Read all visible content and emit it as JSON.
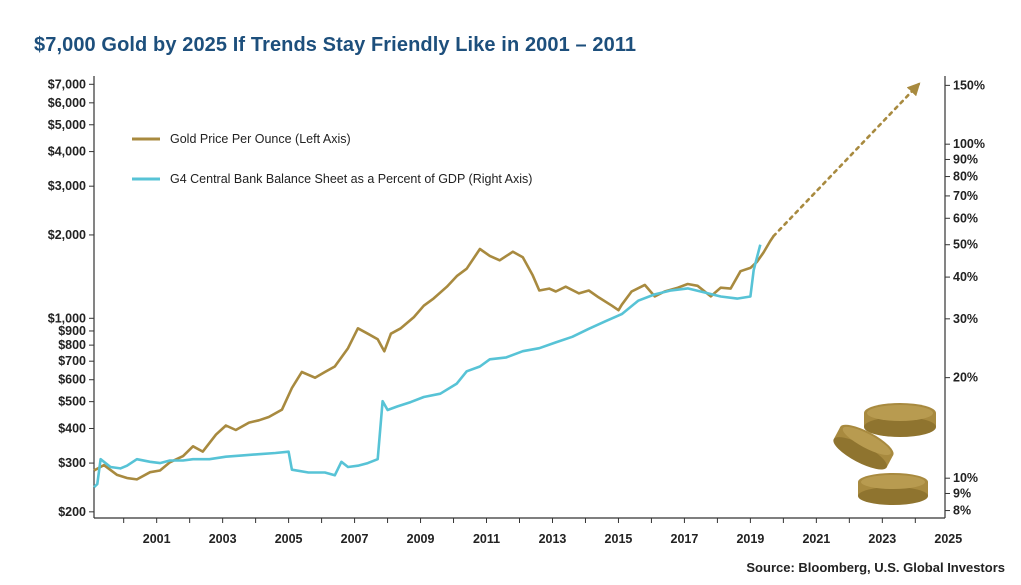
{
  "header": {
    "title": "$7,000 Gold by 2025 If Trends Stay Friendly Like in 2001 – 2011"
  },
  "footer": {
    "source": "Source: Bloomberg, U.S. Global Investors"
  },
  "colors": {
    "gold": "#a88a3f",
    "blue": "#57c3d6",
    "title": "#1d4f7c",
    "axis": "#333333"
  },
  "chart_data": {
    "type": "line",
    "title": "$7,000 Gold by 2025 If Trends Stay Friendly Like in 2001 – 2011",
    "x_range": [
      2000.0,
      2025.8
    ],
    "x_ticks": [
      "2001",
      "2003",
      "2005",
      "2007",
      "2009",
      "2011",
      "2013",
      "2015",
      "2017",
      "2019",
      "2021",
      "2023",
      "2025"
    ],
    "left_axis": {
      "scale": "log",
      "range": [
        190,
        7500
      ],
      "ticks": [
        {
          "value": 7000,
          "label": "$7,000"
        },
        {
          "value": 6000,
          "label": "$6,000"
        },
        {
          "value": 5000,
          "label": "$5,000"
        },
        {
          "value": 4000,
          "label": "$4,000"
        },
        {
          "value": 3000,
          "label": "$3,000"
        },
        {
          "value": 2000,
          "label": "$2,000"
        },
        {
          "value": 1000,
          "label": "$1,000"
        },
        {
          "value": 900,
          "label": "$900"
        },
        {
          "value": 800,
          "label": "$800"
        },
        {
          "value": 700,
          "label": "$700"
        },
        {
          "value": 600,
          "label": "$600"
        },
        {
          "value": 500,
          "label": "$500"
        },
        {
          "value": 400,
          "label": "$400"
        },
        {
          "value": 300,
          "label": "$300"
        },
        {
          "value": 200,
          "label": "$200"
        }
      ]
    },
    "right_axis": {
      "scale": "log",
      "range": [
        7.6,
        160
      ],
      "ticks": [
        {
          "value": 150,
          "label": "150%"
        },
        {
          "value": 100,
          "label": "100%"
        },
        {
          "value": 90,
          "label": "90%"
        },
        {
          "value": 80,
          "label": "80%"
        },
        {
          "value": 70,
          "label": "70%"
        },
        {
          "value": 60,
          "label": "60%"
        },
        {
          "value": 50,
          "label": "50%"
        },
        {
          "value": 40,
          "label": "40%"
        },
        {
          "value": 30,
          "label": "30%"
        },
        {
          "value": 20,
          "label": "20%"
        },
        {
          "value": 10,
          "label": "10%"
        },
        {
          "value": 9,
          "label": "9%"
        },
        {
          "value": 8,
          "label": "8%"
        }
      ]
    },
    "legend_placement": "top-left",
    "grid": false,
    "series": [
      {
        "name": "Gold Price Per Ounce (Left Axis)",
        "axis": "left",
        "color": "#a88a3f",
        "points": [
          [
            2000.0,
            282
          ],
          [
            2000.3,
            295
          ],
          [
            2000.7,
            272
          ],
          [
            2001.0,
            265
          ],
          [
            2001.3,
            262
          ],
          [
            2001.7,
            278
          ],
          [
            2002.0,
            282
          ],
          [
            2002.3,
            302
          ],
          [
            2002.7,
            318
          ],
          [
            2003.0,
            345
          ],
          [
            2003.3,
            330
          ],
          [
            2003.7,
            380
          ],
          [
            2004.0,
            410
          ],
          [
            2004.3,
            395
          ],
          [
            2004.7,
            420
          ],
          [
            2005.0,
            428
          ],
          [
            2005.3,
            440
          ],
          [
            2005.7,
            468
          ],
          [
            2006.0,
            560
          ],
          [
            2006.3,
            640
          ],
          [
            2006.7,
            610
          ],
          [
            2007.0,
            640
          ],
          [
            2007.3,
            670
          ],
          [
            2007.7,
            780
          ],
          [
            2008.0,
            920
          ],
          [
            2008.3,
            880
          ],
          [
            2008.6,
            840
          ],
          [
            2008.8,
            760
          ],
          [
            2009.0,
            880
          ],
          [
            2009.3,
            920
          ],
          [
            2009.7,
            1010
          ],
          [
            2010.0,
            1110
          ],
          [
            2010.3,
            1180
          ],
          [
            2010.7,
            1300
          ],
          [
            2011.0,
            1420
          ],
          [
            2011.3,
            1510
          ],
          [
            2011.7,
            1780
          ],
          [
            2012.0,
            1680
          ],
          [
            2012.3,
            1620
          ],
          [
            2012.7,
            1740
          ],
          [
            2013.0,
            1660
          ],
          [
            2013.3,
            1430
          ],
          [
            2013.5,
            1260
          ],
          [
            2013.8,
            1280
          ],
          [
            2014.0,
            1250
          ],
          [
            2014.3,
            1300
          ],
          [
            2014.7,
            1230
          ],
          [
            2015.0,
            1260
          ],
          [
            2015.3,
            1190
          ],
          [
            2015.7,
            1110
          ],
          [
            2015.9,
            1070
          ],
          [
            2016.0,
            1120
          ],
          [
            2016.3,
            1250
          ],
          [
            2016.7,
            1320
          ],
          [
            2017.0,
            1200
          ],
          [
            2017.3,
            1250
          ],
          [
            2017.7,
            1290
          ],
          [
            2018.0,
            1330
          ],
          [
            2018.3,
            1310
          ],
          [
            2018.7,
            1200
          ],
          [
            2019.0,
            1290
          ],
          [
            2019.3,
            1280
          ],
          [
            2019.6,
            1480
          ],
          [
            2019.9,
            1520
          ],
          [
            2020.1,
            1600
          ],
          [
            2020.3,
            1730
          ],
          [
            2020.5,
            1900
          ],
          [
            2020.6,
            1980
          ]
        ]
      },
      {
        "name": "G4 Central Bank Balance Sheet as a Percent of GDP (Right Axis)",
        "axis": "right",
        "color": "#57c3d6",
        "points": [
          [
            2000.0,
            9.4
          ],
          [
            2000.1,
            9.6
          ],
          [
            2000.2,
            11.4
          ],
          [
            2000.5,
            10.8
          ],
          [
            2000.8,
            10.7
          ],
          [
            2001.0,
            10.9
          ],
          [
            2001.3,
            11.4
          ],
          [
            2001.7,
            11.2
          ],
          [
            2002.0,
            11.1
          ],
          [
            2002.3,
            11.3
          ],
          [
            2002.7,
            11.3
          ],
          [
            2003.0,
            11.4
          ],
          [
            2003.5,
            11.4
          ],
          [
            2004.0,
            11.6
          ],
          [
            2004.5,
            11.7
          ],
          [
            2005.0,
            11.8
          ],
          [
            2005.5,
            11.9
          ],
          [
            2005.9,
            12.0
          ],
          [
            2006.0,
            10.6
          ],
          [
            2006.5,
            10.4
          ],
          [
            2007.0,
            10.4
          ],
          [
            2007.3,
            10.2
          ],
          [
            2007.5,
            11.2
          ],
          [
            2007.7,
            10.8
          ],
          [
            2008.0,
            10.9
          ],
          [
            2008.3,
            11.1
          ],
          [
            2008.6,
            11.4
          ],
          [
            2008.75,
            17.0
          ],
          [
            2008.9,
            16.0
          ],
          [
            2009.2,
            16.4
          ],
          [
            2009.6,
            16.9
          ],
          [
            2010.0,
            17.5
          ],
          [
            2010.5,
            17.9
          ],
          [
            2011.0,
            19.2
          ],
          [
            2011.3,
            20.9
          ],
          [
            2011.7,
            21.6
          ],
          [
            2012.0,
            22.7
          ],
          [
            2012.5,
            23.0
          ],
          [
            2013.0,
            24.0
          ],
          [
            2013.5,
            24.5
          ],
          [
            2014.0,
            25.5
          ],
          [
            2014.5,
            26.5
          ],
          [
            2015.0,
            28.0
          ],
          [
            2015.5,
            29.5
          ],
          [
            2016.0,
            31.0
          ],
          [
            2016.5,
            34.0
          ],
          [
            2017.0,
            35.5
          ],
          [
            2017.5,
            36.5
          ],
          [
            2018.0,
            37.0
          ],
          [
            2018.5,
            36.0
          ],
          [
            2019.0,
            35.0
          ],
          [
            2019.5,
            34.5
          ],
          [
            2019.9,
            35.0
          ],
          [
            2020.0,
            42.0
          ],
          [
            2020.2,
            50.0
          ]
        ]
      }
    ],
    "projection": {
      "axis": "left",
      "color": "#a88a3f",
      "style": "dotted",
      "arrow": true,
      "points": [
        [
          2020.6,
          1980
        ],
        [
          2025.0,
          7000
        ]
      ]
    }
  }
}
